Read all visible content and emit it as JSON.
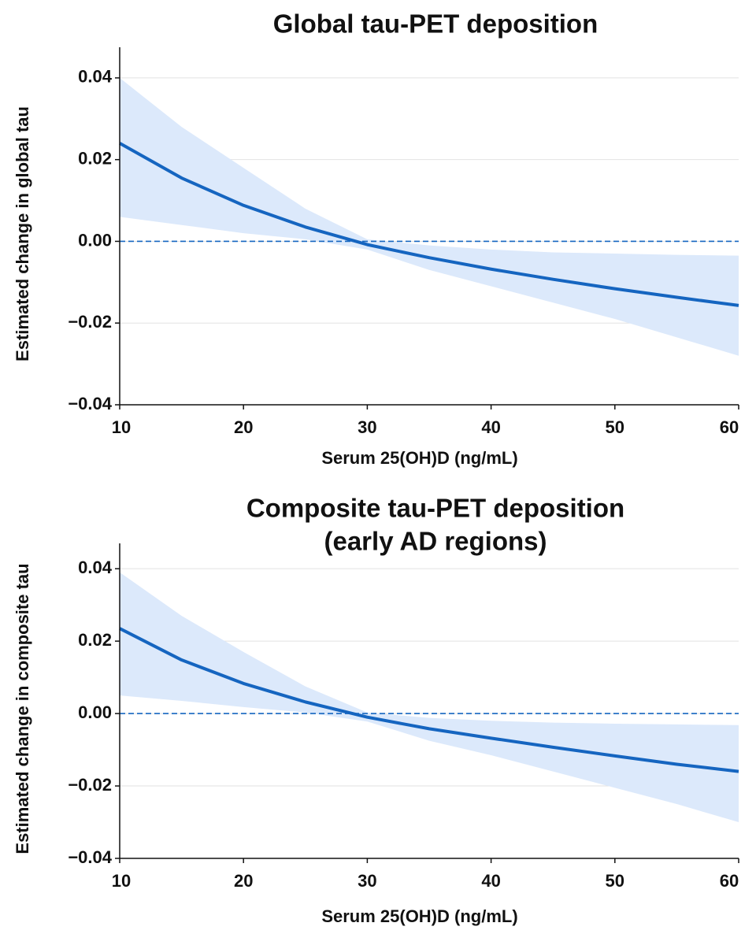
{
  "chart_data": [
    {
      "type": "line",
      "title": [
        "Global tau-PET deposition"
      ],
      "x_label": "Serum 25(OH)D (ng/mL)",
      "y_label": "Estimated change in global tau",
      "x": [
        10,
        15,
        20,
        25,
        30,
        35,
        40,
        45,
        50,
        55,
        60
      ],
      "series": [
        {
          "color": "#1565c0",
          "band_color": "#dce9fb",
          "values": [
            0.024,
            0.0155,
            0.0088,
            0.0035,
            -0.0008,
            -0.004,
            -0.0068,
            -0.0093,
            -0.0116,
            -0.0137,
            -0.0157
          ],
          "upper": [
            0.04,
            0.028,
            0.018,
            0.008,
            0.0005,
            -0.001,
            -0.002,
            -0.0027,
            -0.003,
            -0.0033,
            -0.0035
          ],
          "lower": [
            0.006,
            0.004,
            0.002,
            0.0005,
            -0.002,
            -0.007,
            -0.011,
            -0.015,
            -0.019,
            -0.0235,
            -0.028
          ]
        }
      ],
      "xlim": [
        10,
        60
      ],
      "xticks": [
        10,
        20,
        30,
        40,
        50,
        60
      ],
      "ylim": [
        -0.04,
        0.0475
      ],
      "yticks": [
        {
          "value": -0.04,
          "label": "−0.04"
        },
        {
          "value": -0.02,
          "label": "−0.02"
        },
        {
          "value": 0,
          "label": "0.00"
        },
        {
          "value": 0.02,
          "label": "0.02"
        },
        {
          "value": 0.04,
          "label": "0.04"
        }
      ],
      "reference_line": 0,
      "grid": true
    },
    {
      "type": "line",
      "title": [
        "Composite tau-PET deposition",
        "(early AD regions)"
      ],
      "x_label": "Serum 25(OH)D (ng/mL)",
      "y_label": "Estimated change in composite tau",
      "x": [
        10,
        15,
        20,
        25,
        30,
        35,
        40,
        45,
        50,
        55,
        60
      ],
      "series": [
        {
          "color": "#1565c0",
          "band_color": "#dce9fb",
          "values": [
            0.0235,
            0.0148,
            0.0083,
            0.0032,
            -0.001,
            -0.0042,
            -0.0068,
            -0.0093,
            -0.0117,
            -0.014,
            -0.016
          ],
          "upper": [
            0.039,
            0.027,
            0.017,
            0.0075,
            0.0003,
            -0.0012,
            -0.002,
            -0.0025,
            -0.0028,
            -0.003,
            -0.0032
          ],
          "lower": [
            0.005,
            0.0035,
            0.0018,
            0.0003,
            -0.0022,
            -0.0075,
            -0.0115,
            -0.016,
            -0.0205,
            -0.025,
            -0.03
          ]
        }
      ],
      "xlim": [
        10,
        60
      ],
      "xticks": [
        10,
        20,
        30,
        40,
        50,
        60
      ],
      "ylim": [
        -0.04,
        0.047
      ],
      "yticks": [
        {
          "value": -0.04,
          "label": "−0.04"
        },
        {
          "value": -0.02,
          "label": "−0.02"
        },
        {
          "value": 0,
          "label": "0.00"
        },
        {
          "value": 0.02,
          "label": "0.02"
        },
        {
          "value": 0.04,
          "label": "0.04"
        }
      ],
      "reference_line": 0,
      "grid": true
    }
  ]
}
